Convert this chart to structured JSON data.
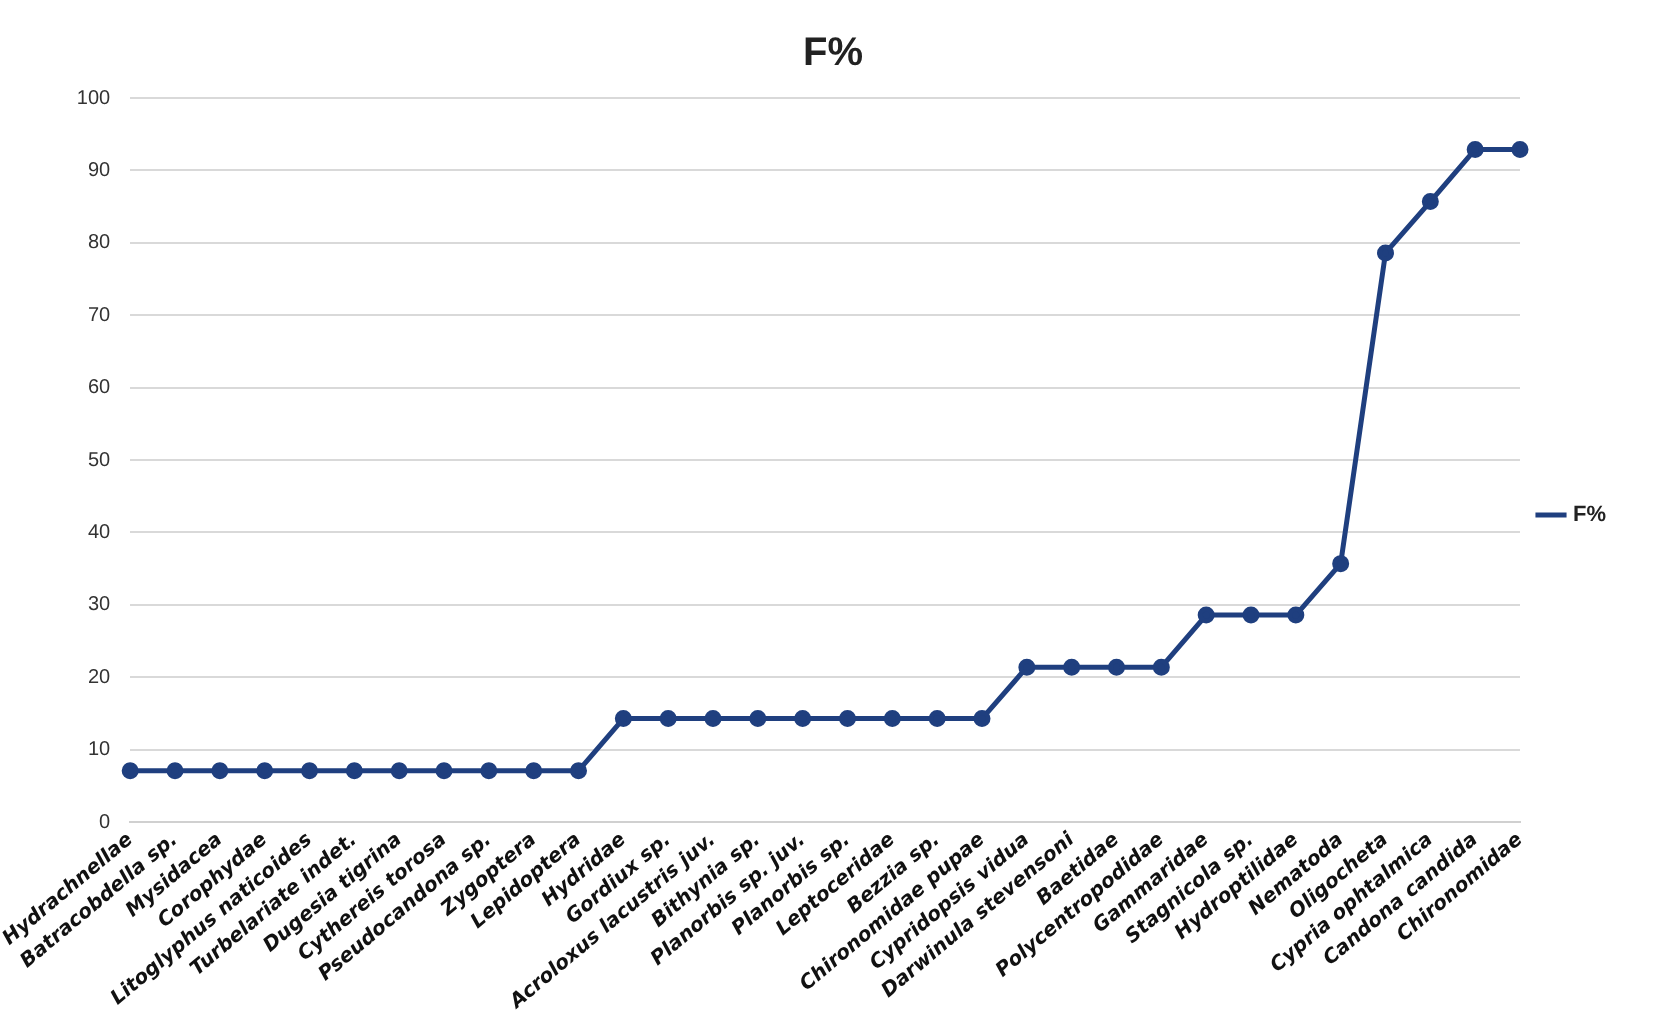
{
  "chart_data": {
    "type": "line",
    "title": "F%",
    "categories": [
      "Hydrachnellae",
      "Batracobdella sp.",
      "Mysidacea",
      "Corophydae",
      "Litoglyphus naticoides",
      "Turbelariate indet.",
      "Dugesia tigrina",
      "Cythereis torosa",
      "Pseudocandona sp.",
      "Zygoptera",
      "Lepidoptera",
      "Hydridae",
      "Gordiux sp.",
      "Acroloxus lacustris juv.",
      "Bithynia sp.",
      "Planorbis sp. juv.",
      "Planorbis sp.",
      "Leptoceridae",
      "Bezzia sp.",
      "Chironomidae pupae",
      "Cypridopsis vidua",
      "Darwinula stevensoni",
      "Baetidae",
      "Polycentropodidae",
      "Gammaridae",
      "Stagnicola sp.",
      "Hydroptilidae",
      "Nematoda",
      "Oligocheta",
      "Cypria ophtalmica",
      "Candona candida",
      "Chironomidae"
    ],
    "series": [
      {
        "name": "F%",
        "color": "#1f3f7f",
        "values": [
          7.1,
          7.1,
          7.1,
          7.1,
          7.1,
          7.1,
          7.1,
          7.1,
          7.1,
          7.1,
          7.1,
          14.3,
          14.3,
          14.3,
          14.3,
          14.3,
          14.3,
          14.3,
          14.3,
          14.3,
          21.4,
          21.4,
          21.4,
          21.4,
          28.6,
          28.6,
          28.6,
          35.7,
          78.6,
          85.7,
          92.9,
          92.9
        ]
      }
    ],
    "ylim": [
      0,
      100
    ],
    "yticks": [
      0,
      10,
      20,
      30,
      40,
      50,
      60,
      70,
      80,
      90,
      100
    ],
    "grid": "y",
    "legend": "right",
    "marker": "circle",
    "line_style": "solid"
  }
}
